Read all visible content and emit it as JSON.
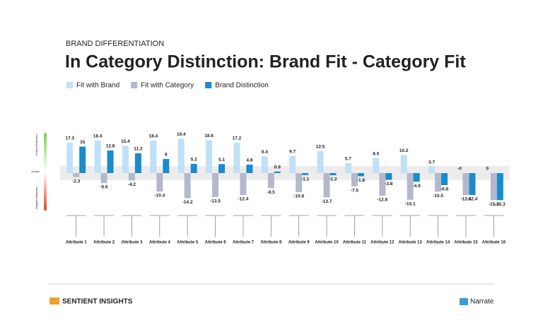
{
  "chart_data": {
    "type": "bar",
    "subtitle": "BRAND DIFFERENTIATION",
    "title": "In Category Distinction: Brand Fit - Category Fit",
    "categories": [
      "Attribute 1",
      "Attribute 2",
      "Attribute 3",
      "Attribute 4",
      "Attribute 5",
      "Attribute 6",
      "Attribute 7",
      "Attribute 8",
      "Attribute 9",
      "Attribute 10",
      "Attribute 11",
      "Attribute 12",
      "Attribute 13",
      "Attribute 14",
      "Attribute 15",
      "Attribute 16"
    ],
    "series": [
      {
        "name": "Fit with Brand",
        "color": "#bfe0f7",
        "values": [
          17.3,
          18.4,
          15.4,
          18.4,
          19.4,
          18.6,
          17.2,
          9.4,
          9.7,
          12.5,
          5.7,
          8.5,
          10.2,
          3.7,
          0,
          0
        ],
        "value_labels": [
          "17.3",
          "18.4",
          "15.4",
          "18.4",
          "19.4",
          "18.6",
          "17.2",
          "9.4",
          "9.7",
          "12.5",
          "5.7",
          "8.5",
          "10.2",
          "3.7",
          "-0",
          "0"
        ]
      },
      {
        "name": "Fit with Category",
        "color": "#b4b8cc",
        "values": [
          -2.3,
          -5.6,
          -4.2,
          -10.4,
          -14.2,
          -13.5,
          -12.4,
          -8.5,
          -10.8,
          -13.7,
          -7.5,
          -12.8,
          -15.1,
          -10.5,
          -12.4,
          -15.3
        ]
      },
      {
        "name": "Brand Distinction",
        "color": "#1a8ccc",
        "values": [
          15,
          12.8,
          11.2,
          8,
          5.2,
          5.1,
          4.8,
          0.9,
          -1.1,
          -1.2,
          -1.8,
          -3.8,
          -4.9,
          -6.8,
          -12.4,
          -15.3
        ]
      }
    ],
    "ylim": [
      -20,
      22
    ],
    "scale_labels": [
      "Positive Distinction",
      "Neutral",
      "Negative Distinction"
    ]
  },
  "footer": {
    "left_logo": "SENTIENT INSIGHTS",
    "right_logo": "Narrate"
  }
}
